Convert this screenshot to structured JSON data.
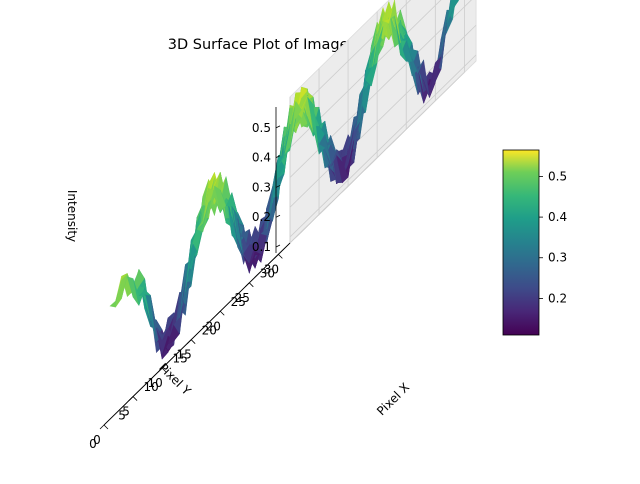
{
  "chart_data": {
    "type": "surface3d",
    "title": "3D Surface Plot of Image Intensity",
    "xlabel": "Pixel X",
    "ylabel": "Pixel Y",
    "zlabel": "Intensity",
    "xlim": [
      0,
      32
    ],
    "ylim": [
      0,
      32
    ],
    "zlim": [
      0.08,
      0.57
    ],
    "x_ticks": [
      "0",
      "5",
      "10",
      "15",
      "20",
      "25",
      "30"
    ],
    "y_ticks": [
      "0",
      "5",
      "10",
      "15",
      "20",
      "25",
      "30"
    ],
    "z_ticks": [
      "0.1",
      "0.2",
      "0.3",
      "0.4",
      "0.5"
    ],
    "colormap": "viridis",
    "colorbar": {
      "min": 0.11,
      "max": 0.565,
      "ticks": [
        "0.2",
        "0.3",
        "0.4",
        "0.5"
      ]
    },
    "surface_description": "32x32 grid of pixel intensities with diagonal ridges of high intensity (~0.55) alternating with valleys (~0.15)"
  }
}
